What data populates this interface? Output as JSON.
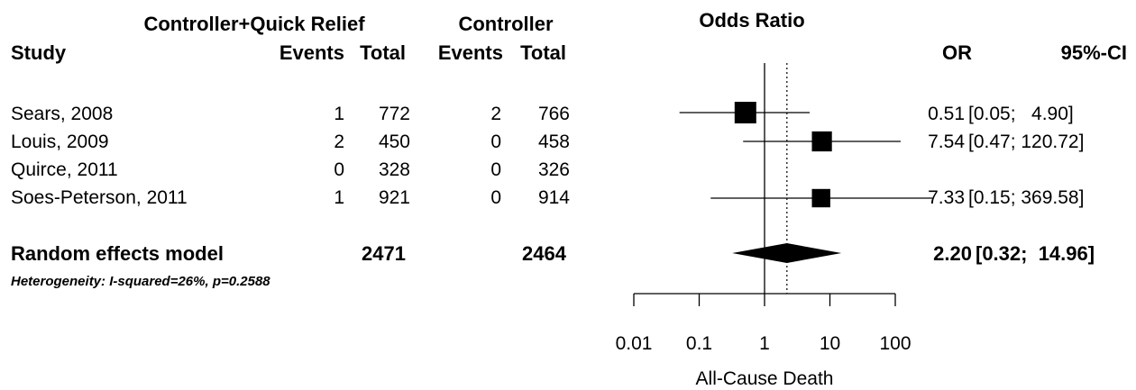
{
  "chart_data": {
    "type": "forest",
    "title": "Odds Ratio",
    "xlabel": "All-Cause Death",
    "x_scale": "log",
    "xlim": [
      0.01,
      100
    ],
    "x_ticks": [
      "0.01",
      "0.1",
      "1",
      "10",
      "100"
    ],
    "x_tick_values": [
      0.01,
      0.1,
      1,
      10,
      100
    ],
    "reference_line": 1,
    "pooled_line": 2.2,
    "headers": {
      "group1": "Controller+Quick Relief",
      "group2": "Controller",
      "study": "Study",
      "events1": "Events",
      "total1": "Total",
      "events2": "Events",
      "total2": "Total",
      "or": "OR",
      "ci": "95%-CI"
    },
    "studies": [
      {
        "name": "Sears, 2008",
        "events1": "1",
        "total1": "772",
        "events2": "2",
        "total2": "766",
        "or": 0.51,
        "lo": 0.05,
        "hi": 4.9,
        "or_text": "0.51",
        "ci_text": "[0.05;   4.90]",
        "weight": 1.0
      },
      {
        "name": "Louis, 2009",
        "events1": "2",
        "total1": "450",
        "events2": "0",
        "total2": "458",
        "or": 7.54,
        "lo": 0.47,
        "hi": 120.72,
        "or_text": "7.54",
        "ci_text": "[0.47; 120.72]",
        "weight": 0.85
      },
      {
        "name": "Quirce, 2011",
        "events1": "0",
        "total1": "328",
        "events2": "0",
        "total2": "326",
        "or": null,
        "lo": null,
        "hi": null,
        "or_text": "",
        "ci_text": "",
        "weight": 0
      },
      {
        "name": "Soes-Peterson, 2011",
        "events1": "1",
        "total1": "921",
        "events2": "0",
        "total2": "914",
        "or": 7.33,
        "lo": 0.15,
        "hi": 369.58,
        "or_text": "7.33",
        "ci_text": "[0.15; 369.58]",
        "weight": 0.7
      }
    ],
    "pooled": {
      "name": "Random effects model",
      "total1": "2471",
      "total2": "2464",
      "or": 2.2,
      "lo": 0.32,
      "hi": 14.96,
      "or_text": "2.20",
      "ci_text": "[0.32;  14.96]"
    },
    "heterogeneity": "Heterogeneity: I-squared=26%, p=0.2588"
  }
}
